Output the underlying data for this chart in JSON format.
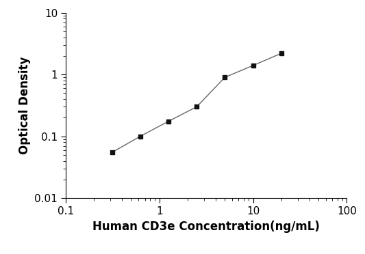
{
  "x": [
    0.3125,
    0.625,
    1.25,
    2.5,
    5.0,
    10.0,
    20.0
  ],
  "y": [
    0.055,
    0.1,
    0.175,
    0.3,
    0.9,
    1.4,
    2.2
  ],
  "xlabel": "Human CD3e Concentration(ng/mL)",
  "ylabel": "Optical Density",
  "xlim": [
    0.1,
    100
  ],
  "ylim": [
    0.01,
    10
  ],
  "xticks": [
    0.1,
    1,
    10,
    100
  ],
  "yticks": [
    0.01,
    0.1,
    1,
    10
  ],
  "line_color": "#666666",
  "marker_color": "#111111",
  "marker": "s",
  "markersize": 5,
  "linewidth": 1.0,
  "background_color": "#ffffff",
  "xlabel_fontsize": 12,
  "ylabel_fontsize": 12,
  "tick_labelsize": 11
}
